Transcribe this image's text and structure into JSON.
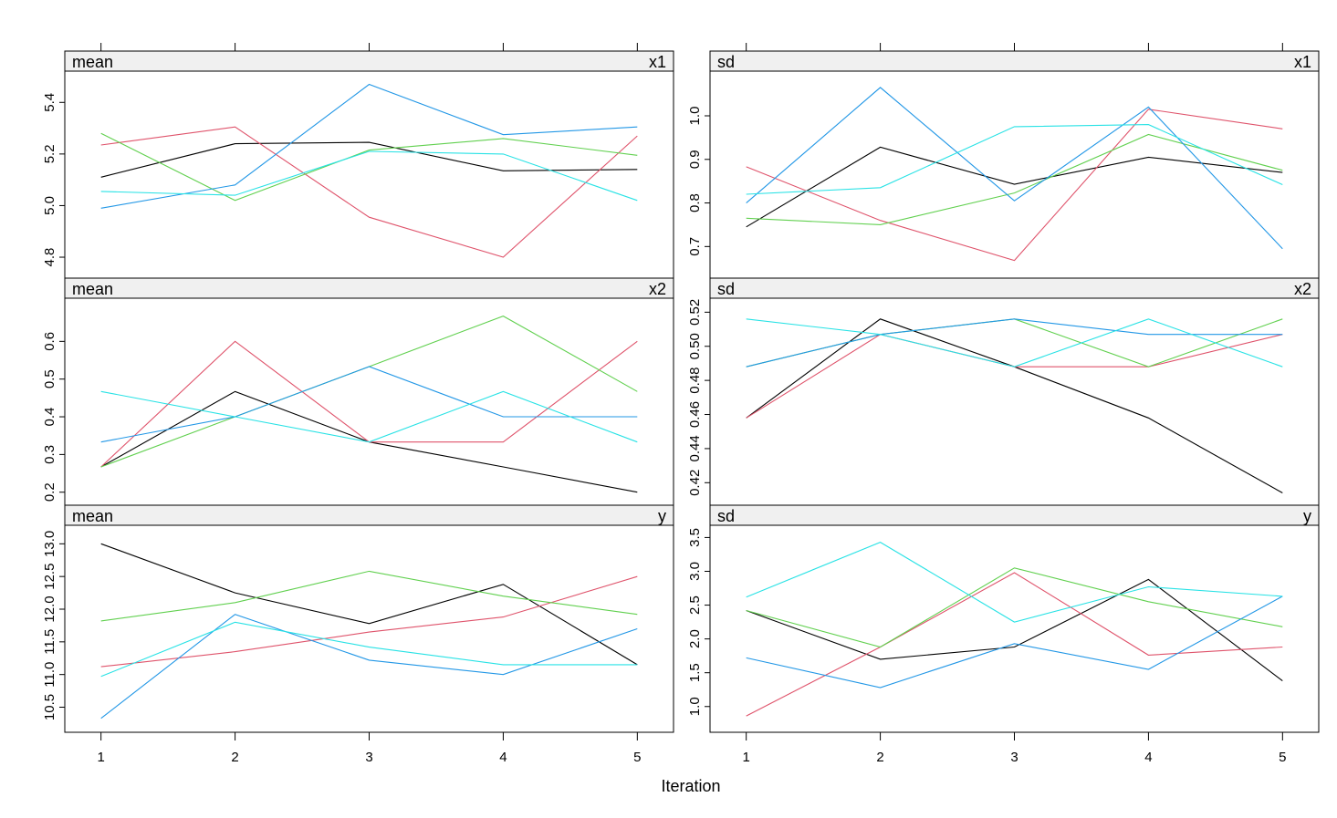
{
  "chart_data": {
    "type": "line",
    "xlabel": "Iteration",
    "x": [
      1,
      2,
      3,
      4,
      5
    ],
    "colors": [
      "#000000",
      "#DF536B",
      "#61D04F",
      "#2297E6",
      "#28E2E5"
    ],
    "panels": [
      {
        "row": 0,
        "col": 0,
        "stat": "mean",
        "variable": "x1",
        "ylim": [
          4.74,
          5.5
        ],
        "yticks": [
          4.8,
          5.0,
          5.2,
          5.4
        ],
        "yticklabels": [
          "4.8",
          "5.0",
          "5.2",
          "5.4"
        ],
        "series": [
          {
            "color": "#000000",
            "values": [
              5.11,
              5.24,
              5.245,
              5.135,
              5.14
            ]
          },
          {
            "color": "#DF536B",
            "values": [
              5.235,
              5.305,
              4.955,
              4.8,
              5.27
            ]
          },
          {
            "color": "#61D04F",
            "values": [
              5.28,
              5.02,
              5.215,
              5.26,
              5.195
            ]
          },
          {
            "color": "#2297E6",
            "values": [
              4.99,
              5.08,
              5.47,
              5.275,
              5.305
            ]
          },
          {
            "color": "#28E2E5",
            "values": [
              5.055,
              5.04,
              5.21,
              5.2,
              5.02
            ]
          }
        ]
      },
      {
        "row": 0,
        "col": 1,
        "stat": "sd",
        "variable": "x1",
        "ylim": [
          0.64,
          1.09
        ],
        "yticks": [
          0.7,
          0.8,
          0.9,
          1.0
        ],
        "yticklabels": [
          "0.7",
          "0.8",
          "0.9",
          "1.0"
        ],
        "series": [
          {
            "color": "#000000",
            "values": [
              0.745,
              0.928,
              0.843,
              0.905,
              0.87
            ]
          },
          {
            "color": "#DF536B",
            "values": [
              0.883,
              0.76,
              0.668,
              1.015,
              0.97
            ]
          },
          {
            "color": "#61D04F",
            "values": [
              0.765,
              0.75,
              0.823,
              0.957,
              0.875
            ]
          },
          {
            "color": "#2297E6",
            "values": [
              0.8,
              1.065,
              0.805,
              1.02,
              0.695
            ]
          },
          {
            "color": "#28E2E5",
            "values": [
              0.82,
              0.835,
              0.975,
              0.98,
              0.842
            ]
          }
        ]
      },
      {
        "row": 1,
        "col": 0,
        "stat": "mean",
        "variable": "x2",
        "ylim": [
          0.18,
          0.7
        ],
        "yticks": [
          0.2,
          0.3,
          0.4,
          0.5,
          0.6
        ],
        "yticklabels": [
          "0.2",
          "0.3",
          "0.4",
          "0.5",
          "0.6"
        ],
        "series": [
          {
            "color": "#000000",
            "values": [
              0.267,
              0.467,
              0.333,
              0.267,
              0.2
            ]
          },
          {
            "color": "#DF536B",
            "values": [
              0.267,
              0.6,
              0.333,
              0.333,
              0.6
            ]
          },
          {
            "color": "#61D04F",
            "values": [
              0.267,
              0.4,
              0.533,
              0.667,
              0.467
            ]
          },
          {
            "color": "#2297E6",
            "values": [
              0.333,
              0.4,
              0.533,
              0.4,
              0.4
            ]
          },
          {
            "color": "#28E2E5",
            "values": [
              0.467,
              0.4,
              0.333,
              0.467,
              0.333
            ]
          }
        ]
      },
      {
        "row": 1,
        "col": 1,
        "stat": "sd",
        "variable": "x2",
        "ylim": [
          0.41,
          0.525
        ],
        "yticks": [
          0.42,
          0.44,
          0.46,
          0.48,
          0.5,
          0.52
        ],
        "yticklabels": [
          "0.42",
          "0.44",
          "0.46",
          "0.48",
          "0.50",
          "0.52"
        ],
        "series": [
          {
            "color": "#000000",
            "values": [
              0.458,
              0.516,
              0.488,
              0.458,
              0.414
            ]
          },
          {
            "color": "#DF536B",
            "values": [
              0.458,
              0.507,
              0.488,
              0.488,
              0.507
            ]
          },
          {
            "color": "#61D04F",
            "values": [
              0.488,
              0.507,
              0.516,
              0.488,
              0.516
            ]
          },
          {
            "color": "#2297E6",
            "values": [
              0.488,
              0.507,
              0.516,
              0.507,
              0.507
            ]
          },
          {
            "color": "#28E2E5",
            "values": [
              0.516,
              0.507,
              0.488,
              0.516,
              0.488
            ]
          }
        ]
      },
      {
        "row": 2,
        "col": 0,
        "stat": "mean",
        "variable": "y",
        "ylim": [
          10.2,
          13.2
        ],
        "yticks": [
          10.5,
          11.0,
          11.5,
          12.0,
          12.5,
          13.0
        ],
        "yticklabels": [
          "10.5",
          "11.0",
          "11.5",
          "12.0",
          "12.5",
          "13.0"
        ],
        "series": [
          {
            "color": "#000000",
            "values": [
              13.0,
              12.25,
              11.78,
              12.38,
              11.15
            ]
          },
          {
            "color": "#DF536B",
            "values": [
              11.12,
              11.35,
              11.65,
              11.88,
              12.5
            ]
          },
          {
            "color": "#61D04F",
            "values": [
              11.82,
              12.1,
              12.58,
              12.2,
              11.92
            ]
          },
          {
            "color": "#2297E6",
            "values": [
              10.33,
              11.92,
              11.22,
              11.0,
              11.7
            ]
          },
          {
            "color": "#28E2E5",
            "values": [
              10.97,
              11.8,
              11.42,
              11.15,
              11.15
            ]
          }
        ]
      },
      {
        "row": 2,
        "col": 1,
        "stat": "sd",
        "variable": "y",
        "ylim": [
          0.7,
          3.6
        ],
        "yticks": [
          1.0,
          1.5,
          2.0,
          2.5,
          3.0,
          3.5
        ],
        "yticklabels": [
          "1.0",
          "1.5",
          "2.0",
          "2.5",
          "3.0",
          "3.5"
        ],
        "series": [
          {
            "color": "#000000",
            "values": [
              2.42,
              1.7,
              1.88,
              2.88,
              1.38
            ]
          },
          {
            "color": "#DF536B",
            "values": [
              0.86,
              1.88,
              2.98,
              1.76,
              1.88
            ]
          },
          {
            "color": "#61D04F",
            "values": [
              2.42,
              1.88,
              3.05,
              2.55,
              2.18
            ]
          },
          {
            "color": "#2297E6",
            "values": [
              1.72,
              1.28,
              1.93,
              1.55,
              2.63
            ]
          },
          {
            "color": "#28E2E5",
            "values": [
              2.62,
              3.43,
              2.25,
              2.77,
              2.63
            ]
          }
        ]
      }
    ]
  }
}
